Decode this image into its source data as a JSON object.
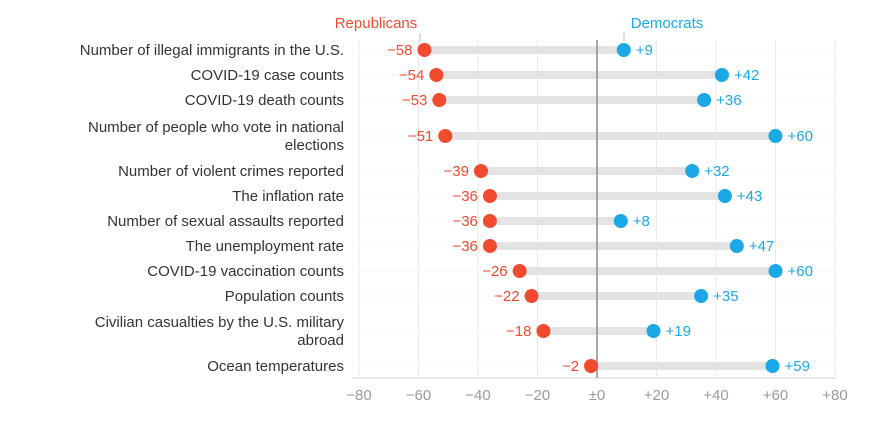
{
  "chart_data": {
    "type": "dot-range",
    "series": [
      {
        "name": "Republicans",
        "color": "#f04a2f",
        "values": [
          -58,
          -54,
          -53,
          -51,
          -39,
          -36,
          -36,
          -36,
          -26,
          -22,
          -18,
          -2
        ],
        "labels": [
          "−58",
          "−54",
          "−53",
          "−51",
          "−39",
          "−36",
          "−36",
          "−36",
          "−26",
          "−22",
          "−18",
          "−2"
        ]
      },
      {
        "name": "Democrats",
        "color": "#1ba8e6",
        "values": [
          9,
          42,
          36,
          60,
          32,
          43,
          8,
          47,
          60,
          35,
          19,
          59
        ],
        "labels": [
          "+9",
          "+42",
          "+36",
          "+60",
          "+32",
          "+43",
          "+8",
          "+47",
          "+60",
          "+35",
          "+19",
          "+59"
        ]
      }
    ],
    "categories": [
      [
        "Number of illegal immigrants in the U.S."
      ],
      [
        "COVID-19 case counts"
      ],
      [
        "COVID-19 death counts"
      ],
      [
        "Number of people who vote in national",
        "elections"
      ],
      [
        "Number of violent crimes reported"
      ],
      [
        "The inflation rate"
      ],
      [
        "Number of sexual assaults reported"
      ],
      [
        "The unemployment rate"
      ],
      [
        "COVID-19 vaccination counts"
      ],
      [
        "Population counts"
      ],
      [
        "Civilian casualties by the U.S. military",
        "abroad"
      ],
      [
        "Ocean temperatures"
      ]
    ],
    "xlim": [
      -80,
      80
    ],
    "xticks": [
      -80,
      -60,
      -40,
      -20,
      0,
      20,
      40,
      60,
      80
    ],
    "xtick_labels": [
      "−80",
      "−60",
      "−40",
      "−20",
      "±0",
      "+20",
      "+40",
      "+60",
      "+80"
    ],
    "grid": true,
    "legend_placement": "top"
  }
}
